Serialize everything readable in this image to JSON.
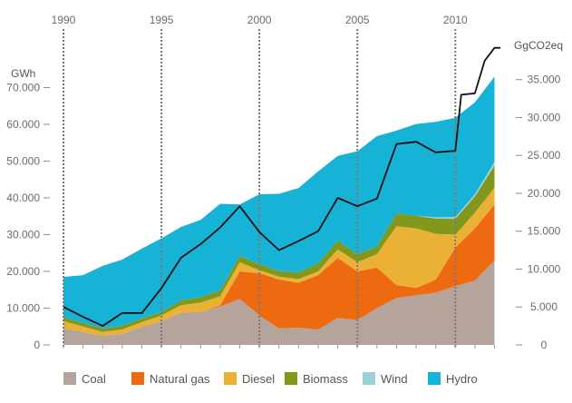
{
  "chart_data": {
    "type": "area",
    "title": "",
    "x": [
      1990,
      1991,
      1992,
      1993,
      1994,
      1995,
      1996,
      1997,
      1998,
      1999,
      2000,
      2001,
      2002,
      2003,
      2004,
      2005,
      2006,
      2007,
      2008,
      2009,
      2010,
      2011,
      2012
    ],
    "xlim": [
      1990,
      2012.3
    ],
    "x_ticks": [
      1990,
      1995,
      2000,
      2005,
      2010
    ],
    "x_tick_labels": [
      "1990",
      "1995",
      "2000",
      "2005",
      "2010"
    ],
    "y_left": {
      "label": "GWh",
      "lim": [
        0,
        80000
      ],
      "ticks": [
        0,
        10000,
        20000,
        30000,
        40000,
        50000,
        60000,
        70000
      ],
      "tick_labels": [
        "0",
        "10.000",
        "20.000",
        "30.000",
        "40.000",
        "50.000",
        "60.000",
        "70.000"
      ]
    },
    "y_right": {
      "label": "GgCO2eq",
      "lim": [
        0,
        38800
      ],
      "ticks": [
        0,
        5000,
        10000,
        15000,
        20000,
        25000,
        30000,
        35000
      ],
      "tick_labels": [
        "0",
        "5.000",
        "10.000",
        "15.000",
        "20.000",
        "25.000",
        "30.000",
        "35.000"
      ]
    },
    "stacked": true,
    "series": [
      {
        "name": "Coal",
        "color": "#b5a49c",
        "axis": "left",
        "values": [
          4500,
          3500,
          2500,
          3000,
          5000,
          6500,
          8800,
          9000,
          10500,
          12500,
          8000,
          4500,
          4700,
          4200,
          7300,
          6800,
          10000,
          12800,
          13500,
          14200,
          16000,
          17500,
          23000
        ]
      },
      {
        "name": "Natural gas",
        "color": "#ee6a11",
        "axis": "left",
        "values": [
          0,
          0,
          0,
          0,
          0,
          0,
          0,
          0,
          300,
          7500,
          11500,
          13300,
          12200,
          14800,
          16400,
          13200,
          11000,
          3500,
          2000,
          3500,
          10500,
          14200,
          15200
        ]
      },
      {
        "name": "Diesel",
        "color": "#ebb134",
        "axis": "left",
        "values": [
          2000,
          1500,
          1000,
          1200,
          1200,
          1500,
          2000,
          2500,
          2400,
          2500,
          800,
          800,
          1000,
          1000,
          2300,
          2500,
          3700,
          16000,
          16200,
          12500,
          3500,
          4300,
          4600
        ]
      },
      {
        "name": "Biomass",
        "color": "#82981d",
        "axis": "left",
        "values": [
          1000,
          1000,
          1000,
          1000,
          1000,
          1000,
          1300,
          1500,
          1700,
          1700,
          1700,
          1500,
          1800,
          2200,
          2400,
          2200,
          2100,
          3500,
          3400,
          4200,
          4300,
          4400,
          6000
        ]
      },
      {
        "name": "Wind",
        "color": "#9dcfd9",
        "axis": "left",
        "values": [
          0,
          0,
          0,
          0,
          0,
          0,
          0,
          0,
          0,
          0,
          0,
          0,
          0,
          0,
          0,
          0,
          0,
          0,
          0,
          300,
          500,
          600,
          1000
        ]
      },
      {
        "name": "Hydro",
        "color": "#17b3d6",
        "axis": "left",
        "values": [
          11000,
          13000,
          17000,
          18000,
          19000,
          20000,
          20000,
          21000,
          23500,
          14000,
          19000,
          21000,
          23000,
          25000,
          23000,
          28000,
          30000,
          22500,
          25000,
          26000,
          27000,
          25000,
          23200
        ]
      }
    ],
    "emissions": {
      "axis": "right",
      "color": "#111111",
      "x": [
        1990,
        1991,
        1992,
        1993,
        1994,
        1995,
        1996,
        1997,
        1998,
        1999,
        2000,
        2001,
        2002,
        2003,
        2004,
        2005,
        2006,
        2007,
        2008,
        2009,
        2010,
        2010.3,
        2011,
        2011.5,
        2012,
        2012.3
      ],
      "values": [
        5000,
        3700,
        2500,
        4200,
        4200,
        7500,
        11500,
        13300,
        15500,
        18300,
        14900,
        12500,
        13700,
        15000,
        19400,
        18300,
        19300,
        26500,
        26800,
        25400,
        25600,
        33000,
        33200,
        37500,
        39200,
        39200
      ]
    },
    "legend": {
      "placement": "bottom",
      "order": [
        "Coal",
        "Natural gas",
        "Diesel",
        "Biomass",
        "Wind",
        "Hydro"
      ]
    },
    "grid": false
  }
}
